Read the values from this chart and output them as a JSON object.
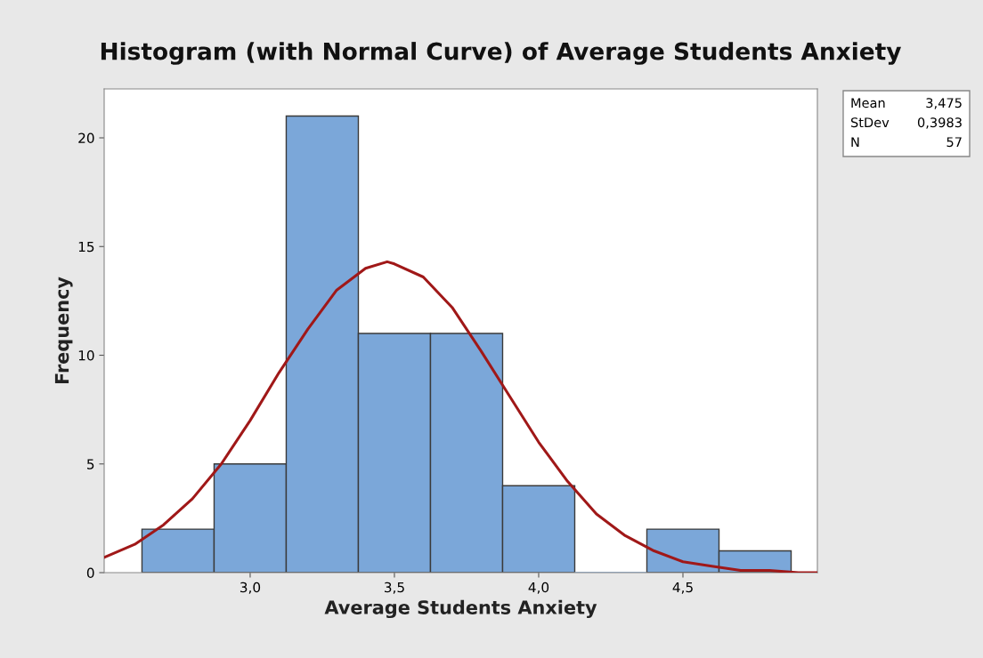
{
  "chart_data": {
    "type": "histogram",
    "title": "Histogram (with Normal Curve) of Average Students Anxiety",
    "xlabel": "Average Students Anxiety",
    "ylabel": "Frequency",
    "bins": [
      2.625,
      2.875,
      3.125,
      3.375,
      3.625,
      3.875,
      4.125,
      4.375,
      4.625,
      4.875
    ],
    "values": [
      2,
      5,
      21,
      11,
      11,
      4,
      0,
      2,
      1
    ],
    "color": "#7ba7d9",
    "series": [
      {
        "type": "line",
        "color": "#a01818",
        "x": [
          2.494,
          2.6,
          2.7,
          2.8,
          2.9,
          3.0,
          3.1,
          3.2,
          3.3,
          3.4,
          3.475,
          3.5,
          3.6,
          3.7,
          3.8,
          3.9,
          4.0,
          4.1,
          4.2,
          4.3,
          4.4,
          4.5,
          4.6,
          4.7,
          4.8,
          4.9,
          4.966
        ],
        "values": [
          0.7,
          1.3,
          2.2,
          3.4,
          5.0,
          7.0,
          9.2,
          11.2,
          13.0,
          14.0,
          14.3,
          14.2,
          13.6,
          12.2,
          10.2,
          8.1,
          6.0,
          4.2,
          2.7,
          1.7,
          1.0,
          0.5,
          0.3,
          0.1,
          0.1,
          0.0,
          0.0
        ]
      }
    ],
    "xlim": [
      2.494,
      4.966
    ],
    "xticks": [
      {
        "value": 3.0,
        "label": "3,0"
      },
      {
        "value": 3.5,
        "label": "3,5"
      },
      {
        "value": 4.0,
        "label": "4,0"
      },
      {
        "value": 4.5,
        "label": "4,5"
      }
    ],
    "ylim": [
      0,
      22.25
    ],
    "yticks": [
      0,
      5,
      10,
      15,
      20
    ],
    "grid": false,
    "annotations": [
      "Mean 3,475",
      "StDev 0,3983",
      "N 57"
    ]
  }
}
